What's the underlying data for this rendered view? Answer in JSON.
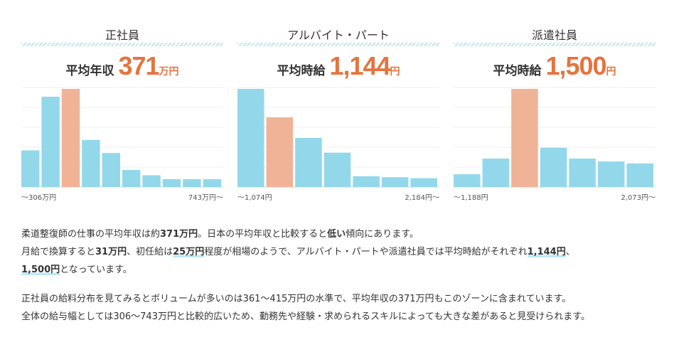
{
  "chart_data": [
    {
      "type": "bar",
      "title": "正社員",
      "headline": {
        "label": "平均年収",
        "value": "371",
        "unit": "万円"
      },
      "values": [
        28,
        69,
        75,
        36,
        26,
        13,
        9,
        6,
        6,
        6
      ],
      "highlight_index": 2,
      "x_min_label": "～306万円",
      "x_max_label": "743万円～",
      "colors": {
        "bar": "#92d8ea",
        "highlight": "#f0b398"
      }
    },
    {
      "type": "bar",
      "title": "アルバイト・パート",
      "headline": {
        "label": "平均時給",
        "value": "1,144",
        "unit": "円"
      },
      "values": [
        100,
        71,
        50,
        35,
        11,
        10,
        9
      ],
      "highlight_index": 1,
      "x_min_label": "～1,074円",
      "x_max_label": "2,184円～",
      "colors": {
        "bar": "#92d8ea",
        "highlight": "#f0b398"
      }
    },
    {
      "type": "bar",
      "title": "派遣社員",
      "headline": {
        "label": "平均時給",
        "value": "1,500",
        "unit": "円"
      },
      "values": [
        13,
        29,
        100,
        40,
        29,
        26,
        24
      ],
      "highlight_index": 2,
      "x_min_label": "～1,188円",
      "x_max_label": "2,073円～",
      "colors": {
        "bar": "#92d8ea",
        "highlight": "#f0b398"
      }
    }
  ],
  "text": {
    "p1": [
      "柔道整復師の仕事の平均年収は約",
      "371万円",
      "。日本の平均年収と比較すると",
      "低い",
      "傾向にあります。",
      "月給で換算すると",
      "31万円",
      "、初任給は",
      "25万円",
      "程度が相場のようで、アルバイト・パートや派遣社員では平均時給がそれぞれ",
      "1,144円",
      "、",
      "1,500円",
      "となっています。"
    ],
    "p2": [
      "正社員の給料分布を見てみるとボリュームが多いのは361～415万円の水準で、平均年収の371万円もこのゾーンに含まれています。",
      "全体の給与幅としては306～743万円と比較的広いため、勤務先や経験・求められるスキルによっても大きな差があると見受けられます。"
    ]
  }
}
